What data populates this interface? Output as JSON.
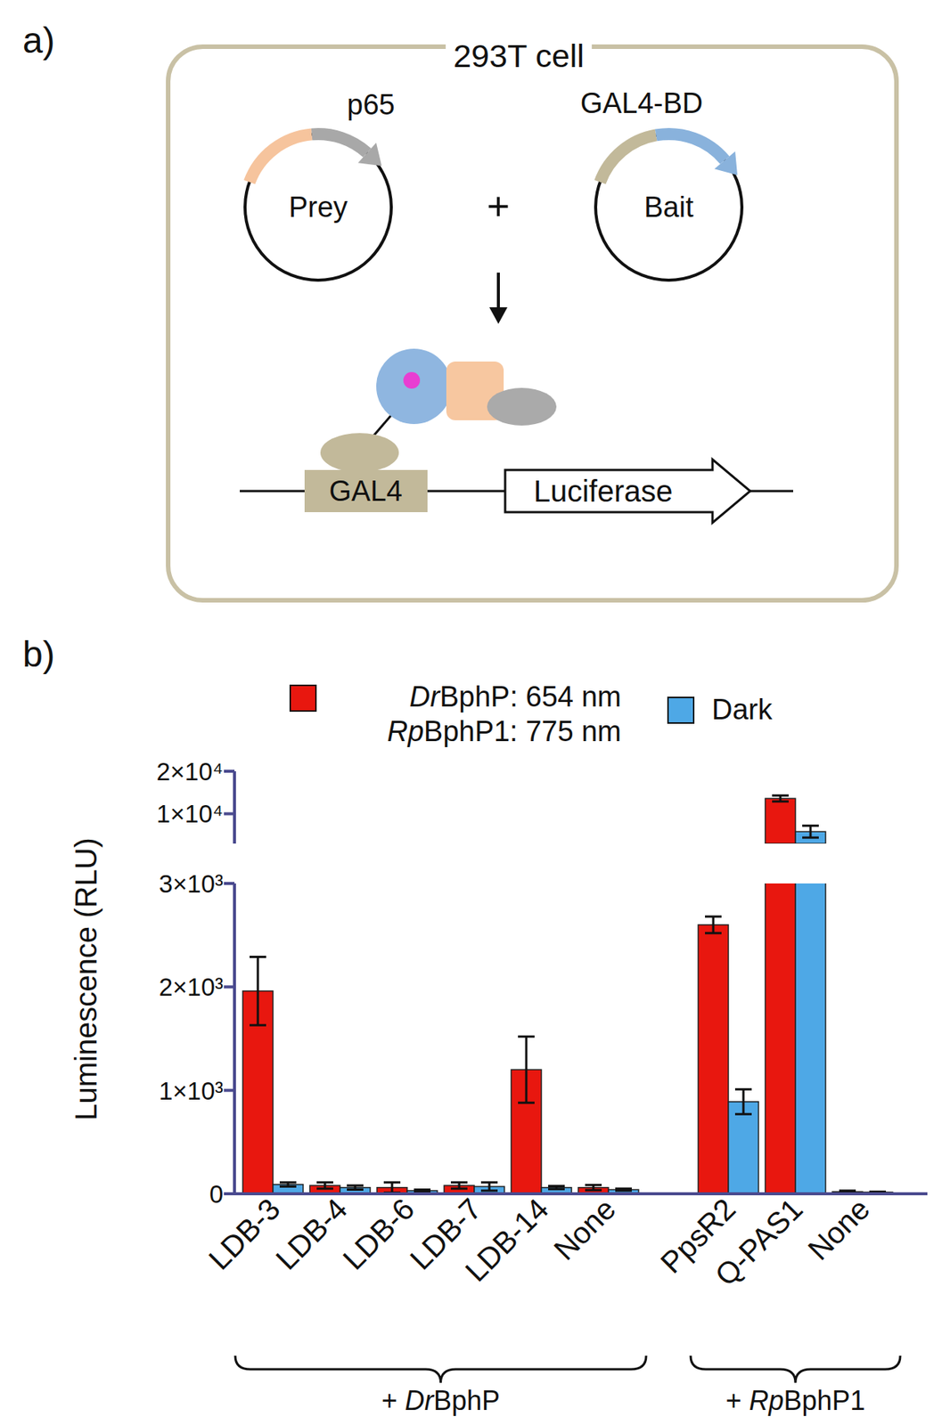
{
  "diagram": {
    "panel_label": "a)",
    "cell_label": "293T cell",
    "prey": {
      "label": "Prey",
      "domain": "p65"
    },
    "bait": {
      "label": "Bait",
      "domain": "GAL4-BD"
    },
    "plus": "+",
    "promoter": "GAL4",
    "reporter": "Luciferase"
  },
  "chart_data": {
    "type": "bar",
    "panel_label": "b)",
    "y_label": "Luminescence (RLU)",
    "categories": [
      "LDB-3",
      "LDB-4",
      "LDB-6",
      "LDB-7",
      "LDB-14",
      "None",
      "PpsR2",
      "Q-PAS1",
      "None"
    ],
    "groups": [
      {
        "label": "+ DrBphP",
        "start": 0,
        "end": 5
      },
      {
        "label": "+ RpBphP1",
        "start": 6,
        "end": 8
      }
    ],
    "series": [
      {
        "name": "DrBphP: 654 nm\nRpBphP1: 775 nm",
        "color": "#e8170f",
        "values": [
          1960,
          80,
          60,
          80,
          1200,
          60,
          2600,
          13600,
          20
        ],
        "errors": [
          330,
          30,
          50,
          30,
          320,
          25,
          80,
          700,
          10
        ]
      },
      {
        "name": "Dark",
        "color": "#4ea8e6",
        "values": [
          90,
          60,
          30,
          70,
          60,
          40,
          890,
          5800,
          15
        ],
        "errors": [
          20,
          20,
          10,
          40,
          15,
          10,
          120,
          1400,
          5
        ]
      }
    ],
    "y_segments": [
      {
        "ylim": [
          0,
          3000
        ],
        "yticks": [
          0,
          {
            "value": 1000,
            "label": "1×10³"
          },
          {
            "value": 2000,
            "label": "2×10³"
          },
          {
            "value": 3000,
            "label": "3×10³"
          }
        ]
      },
      {
        "ylim": [
          3000,
          20000
        ],
        "yticks": [
          {
            "value": 10000,
            "label": "1×10⁴"
          },
          {
            "value": 20000,
            "label": "2×10⁴"
          }
        ]
      }
    ],
    "legend": "top"
  }
}
